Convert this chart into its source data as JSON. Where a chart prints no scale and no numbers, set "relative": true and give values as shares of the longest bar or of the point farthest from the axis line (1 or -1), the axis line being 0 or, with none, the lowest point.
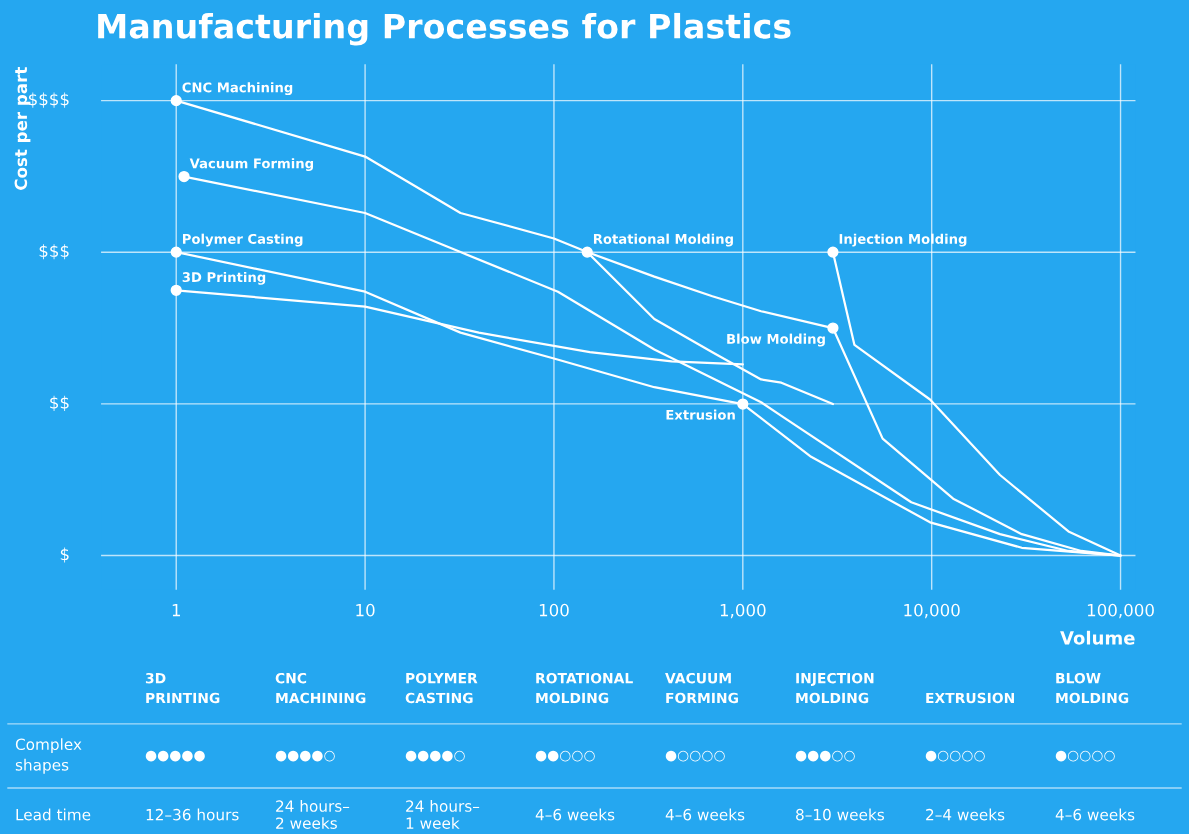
{
  "chart_data": [
    {
      "type": "line",
      "title": "Manufacturing Processes for Plastics",
      "xlabel": "Volume",
      "ylabel": "Cost per part",
      "log": "x",
      "grid": true,
      "legend": false,
      "line_style": "solid",
      "relative": true,
      "annotations": [
        "$$$$",
        "$$$",
        "$$",
        "$"
      ],
      "xlim": [
        0.4,
        120000
      ],
      "xticks": [
        {
          "value": 1,
          "label": "1"
        },
        {
          "value": 10,
          "label": "10"
        },
        {
          "value": 100,
          "label": "100"
        },
        {
          "value": 1000,
          "label": "1,000"
        },
        {
          "value": 10000,
          "label": "10,000"
        },
        {
          "value": 100000,
          "label": "100,000"
        }
      ],
      "series": [
        {
          "name": "CNC Machining",
          "color": "#ffffff",
          "x": [
            1,
            10,
            32,
            100,
            150,
            340,
            690,
            1250,
            1600,
            3000
          ],
          "values": [
            1,
            0.877,
            0.753,
            0.697,
            0.667,
            0.52,
            0.447,
            0.387,
            0.38,
            0.333
          ]
        },
        {
          "name": "Vacuum Forming",
          "color": "#ffffff",
          "x": [
            1.1,
            10,
            32,
            105,
            340,
            1250,
            1600,
            7800,
            23000,
            53000,
            100000
          ],
          "values": [
            0.833,
            0.753,
            0.667,
            0.58,
            0.453,
            0.337,
            0.307,
            0.117,
            0.047,
            0.01,
            0
          ]
        },
        {
          "name": "Polymer Casting",
          "color": "#ffffff",
          "x": [
            1,
            10,
            32,
            100,
            340,
            1000
          ],
          "values": [
            0.667,
            0.58,
            0.49,
            0.433,
            0.37,
            0.333
          ]
        },
        {
          "name": "3D Printing",
          "color": "#ffffff",
          "x": [
            1,
            10,
            40,
            155,
            420,
            1000
          ],
          "values": [
            0.583,
            0.547,
            0.49,
            0.447,
            0.427,
            0.42
          ]
        },
        {
          "name": "Rotational Molding",
          "color": "#ffffff",
          "x": [
            150,
            340,
            690,
            1250,
            3000
          ],
          "values": [
            0.667,
            0.613,
            0.57,
            0.537,
            0.5
          ]
        },
        {
          "name": "Injection Molding",
          "color": "#ffffff",
          "x": [
            3000,
            3900,
            9800,
            23000,
            53000,
            100000
          ],
          "values": [
            0.667,
            0.463,
            0.343,
            0.177,
            0.053,
            0
          ]
        },
        {
          "name": "Blow Molding",
          "color": "#ffffff",
          "x": [
            3000,
            5500,
            13000,
            30000,
            62000,
            100000
          ],
          "values": [
            0.5,
            0.257,
            0.125,
            0.047,
            0.01,
            0
          ]
        },
        {
          "name": "Extrusion",
          "color": "#ffffff",
          "x": [
            1000,
            2300,
            9800,
            30000,
            100000
          ],
          "values": [
            0.333,
            0.217,
            0.073,
            0.017,
            0
          ]
        },
        {
          "type": "scatter",
          "marker": "circle",
          "color": "#ffffff",
          "x": [
            1,
            1.1,
            1,
            1,
            150,
            3000,
            3000,
            1000
          ],
          "values": [
            1,
            0.833,
            0.667,
            0.583,
            0.667,
            0.667,
            0.5,
            0.333
          ]
        }
      ]
    },
    {
      "type": "other",
      "categories": [
        "3D PRINTING",
        "CNC MACHINING",
        "POLYMER CASTING",
        "ROTATIONAL MOLDING",
        "VACUUM FORMING",
        "INJECTION MOLDING",
        "EXTRUSION",
        "BLOW MOLDING"
      ],
      "y_categories": [
        "Complex shapes",
        "Lead time"
      ],
      "cell_labels": [
        [
          "●●●●●",
          "●●●●○",
          "●●●●○",
          "●●○○○",
          "●○○○○",
          "●●●○○",
          "●○○○○",
          "●○○○○"
        ],
        [
          "12–36 hours",
          "24 hours–2 weeks",
          "24 hours–1 week",
          "4–6 weeks",
          "4–6 weeks",
          "8–10 weeks",
          "2–4 weeks",
          "4–6 weeks"
        ]
      ]
    }
  ]
}
